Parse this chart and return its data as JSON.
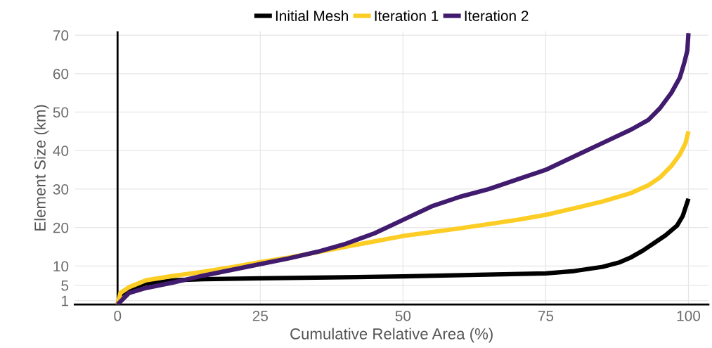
{
  "chart_data": {
    "type": "line",
    "xlabel": "Cumulative Relative Area (%)",
    "ylabel": "Element Size (km)",
    "xlim": [
      -7.5,
      103.5
    ],
    "ylim": [
      0,
      71
    ],
    "xticks": [
      0,
      25,
      50,
      75,
      100
    ],
    "yticks": [
      1,
      5,
      10,
      20,
      30,
      40,
      50,
      60,
      70
    ],
    "grid": true,
    "legend": "top",
    "marker": "none",
    "line_style": "solid",
    "ref_lines": [
      {
        "axis": "x",
        "value": 0,
        "color": "#000000"
      }
    ],
    "series": [
      {
        "name": "Initial Mesh",
        "color": "#000000",
        "x": [
          0,
          0.5,
          2,
          5,
          10,
          15,
          25,
          50,
          75,
          80,
          85,
          88,
          90,
          92,
          94,
          96,
          98,
          99,
          100
        ],
        "values": [
          0,
          2.5,
          4,
          5.5,
          6.3,
          6.6,
          6.8,
          7.3,
          8.1,
          8.7,
          9.8,
          11,
          12.3,
          14,
          16,
          18,
          20.5,
          23,
          27.5
        ]
      },
      {
        "name": "Iteration 1",
        "color": "#fccd25",
        "x": [
          0,
          0.5,
          2,
          5,
          10,
          15,
          20,
          25,
          30,
          40,
          50,
          60,
          70,
          75,
          80,
          85,
          90,
          93,
          95,
          97,
          98.5,
          99.5,
          100
        ],
        "values": [
          0,
          3,
          4.5,
          6.3,
          7.5,
          8.5,
          9.7,
          11,
          12.2,
          15,
          17.8,
          19.8,
          22,
          23.3,
          25,
          26.8,
          29,
          31,
          33,
          36,
          39,
          42,
          45
        ]
      },
      {
        "name": "Iteration 2",
        "color": "#401b6e",
        "x": [
          0,
          2,
          5,
          10,
          15,
          20,
          25,
          30,
          35,
          40,
          45,
          50,
          55,
          60,
          65,
          70,
          75,
          80,
          85,
          90,
          93,
          95,
          97,
          98.5,
          99.3,
          99.8,
          100
        ],
        "values": [
          0,
          3,
          4.3,
          5.8,
          7.5,
          9,
          10.5,
          12,
          13.7,
          15.8,
          18.5,
          22,
          25.5,
          28,
          30,
          32.5,
          35,
          38.5,
          42,
          45.5,
          48,
          51,
          55,
          59,
          63,
          66,
          70.5
        ]
      }
    ]
  }
}
